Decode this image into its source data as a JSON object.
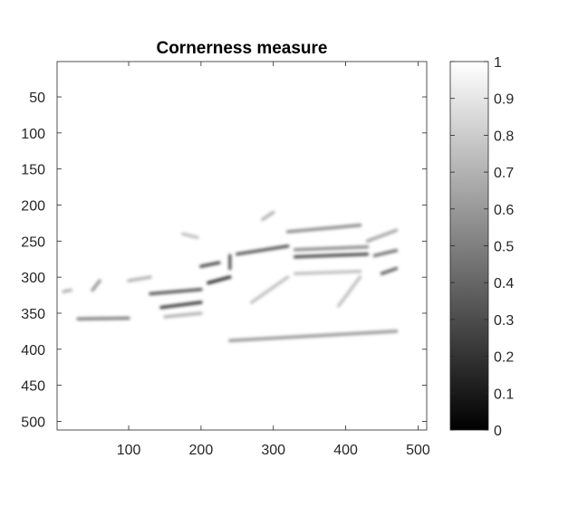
{
  "chart_data": [
    {
      "type": "heatmap",
      "title": "Cornerness measure",
      "xlabel": "",
      "ylabel": "",
      "colormap": "gray",
      "xlim": [
        1,
        512
      ],
      "ylim": [
        1,
        512
      ],
      "y_reversed": true,
      "x_ticks": [
        100,
        200,
        300,
        400,
        500
      ],
      "y_ticks": [
        50,
        100,
        150,
        200,
        250,
        300,
        350,
        400,
        450,
        500
      ],
      "x_tick_labels": [
        "100",
        "200",
        "300",
        "400",
        "500"
      ],
      "y_tick_labels": [
        "50",
        "100",
        "150",
        "200",
        "250",
        "300",
        "350",
        "400",
        "450",
        "500"
      ],
      "background_value": 1.0,
      "features": [
        {
          "kind": "line",
          "points": [
            [
              130,
              323
            ],
            [
              200,
              317
            ]
          ],
          "value": 0.35
        },
        {
          "kind": "line",
          "points": [
            [
              145,
              342
            ],
            [
              200,
              335
            ]
          ],
          "value": 0.25
        },
        {
          "kind": "line",
          "points": [
            [
              330,
              272
            ],
            [
              430,
              268
            ]
          ],
          "value": 0.3
        },
        {
          "kind": "line",
          "points": [
            [
              330,
              262
            ],
            [
              430,
              258
            ]
          ],
          "value": 0.55
        },
        {
          "kind": "line",
          "points": [
            [
              250,
              268
            ],
            [
              320,
              257
            ]
          ],
          "value": 0.35
        },
        {
          "kind": "line",
          "points": [
            [
              320,
              237
            ],
            [
              420,
              228
            ]
          ],
          "value": 0.55
        },
        {
          "kind": "line",
          "points": [
            [
              210,
              308
            ],
            [
              240,
              300
            ]
          ],
          "value": 0.2
        },
        {
          "kind": "line",
          "points": [
            [
              30,
              358
            ],
            [
              100,
              357
            ]
          ],
          "value": 0.5
        },
        {
          "kind": "line",
          "points": [
            [
              240,
              388
            ],
            [
              470,
              375
            ]
          ],
          "value": 0.6
        },
        {
          "kind": "line",
          "points": [
            [
              200,
              285
            ],
            [
              225,
              280
            ]
          ],
          "value": 0.3
        },
        {
          "kind": "line",
          "points": [
            [
              240,
              270
            ],
            [
              240,
              288
            ]
          ],
          "value": 0.35
        },
        {
          "kind": "line",
          "points": [
            [
              450,
              295
            ],
            [
              470,
              288
            ]
          ],
          "value": 0.4
        },
        {
          "kind": "line",
          "points": [
            [
              440,
              270
            ],
            [
              470,
              263
            ]
          ],
          "value": 0.45
        },
        {
          "kind": "line",
          "points": [
            [
              430,
              250
            ],
            [
              470,
              235
            ]
          ],
          "value": 0.65
        },
        {
          "kind": "line",
          "points": [
            [
              270,
              335
            ],
            [
              320,
              300
            ]
          ],
          "value": 0.75
        },
        {
          "kind": "line",
          "points": [
            [
              330,
              295
            ],
            [
              420,
              292
            ]
          ],
          "value": 0.75
        },
        {
          "kind": "line",
          "points": [
            [
              150,
              355
            ],
            [
              200,
              350
            ]
          ],
          "value": 0.7
        },
        {
          "kind": "line",
          "points": [
            [
              100,
              305
            ],
            [
              130,
              300
            ]
          ],
          "value": 0.7
        },
        {
          "kind": "line",
          "points": [
            [
              50,
              318
            ],
            [
              60,
              305
            ]
          ],
          "value": 0.6
        },
        {
          "kind": "line",
          "points": [
            [
              285,
              220
            ],
            [
              300,
              210
            ]
          ],
          "value": 0.7
        },
        {
          "kind": "line",
          "points": [
            [
              390,
              340
            ],
            [
              420,
              300
            ]
          ],
          "value": 0.75
        },
        {
          "kind": "line",
          "points": [
            [
              175,
              240
            ],
            [
              195,
              245
            ]
          ],
          "value": 0.75
        },
        {
          "kind": "line",
          "points": [
            [
              10,
              320
            ],
            [
              20,
              318
            ]
          ],
          "value": 0.7
        }
      ],
      "colorbar": {
        "ticks": [
          0,
          0.1,
          0.2,
          0.3,
          0.4,
          0.5,
          0.6,
          0.7,
          0.8,
          0.9,
          1
        ],
        "tick_labels": [
          "0",
          "0.1",
          "0.2",
          "0.3",
          "0.4",
          "0.5",
          "0.6",
          "0.7",
          "0.8",
          "0.9",
          "1"
        ],
        "range": [
          0,
          1
        ]
      }
    }
  ]
}
